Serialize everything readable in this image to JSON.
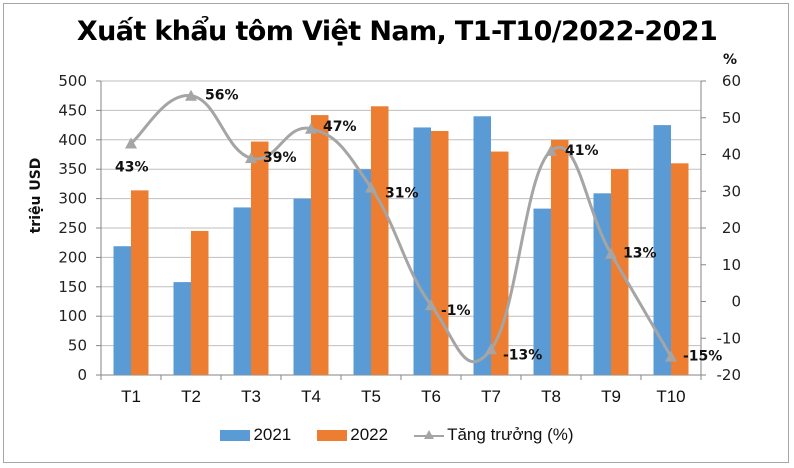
{
  "title": "Xuất khẩu tôm Việt Nam, T1-T10/2022-2021",
  "axes": {
    "left_label": "triệu USD",
    "right_label": "%",
    "left_ticks": [
      "500",
      "450",
      "400",
      "350",
      "300",
      "250",
      "200",
      "150",
      "100",
      "50",
      "0"
    ],
    "right_ticks": [
      "60",
      "50",
      "40",
      "30",
      "20",
      "10",
      "0",
      "-10",
      "-20"
    ]
  },
  "legend": {
    "s2021": "2021",
    "s2022": "2022",
    "growth": "Tăng trưởng (%)"
  },
  "colors": {
    "s2021": "#5B9BD5",
    "s2022": "#ED7D31",
    "growth": "#A5A5A5",
    "grid": "#BFBFBF"
  },
  "chart_data": {
    "type": "bar",
    "title": "Xuất khẩu tôm Việt Nam, T1-T10/2022-2021",
    "xlabel": "",
    "ylabel": "triệu USD",
    "y2label": "%",
    "ylim": [
      0,
      500
    ],
    "y2lim": [
      -20,
      60
    ],
    "grid": true,
    "legend_position": "bottom",
    "categories": [
      "T1",
      "T2",
      "T3",
      "T4",
      "T5",
      "T6",
      "T7",
      "T8",
      "T9",
      "T10"
    ],
    "series": [
      {
        "name": "2021",
        "type": "bar",
        "axis": "left",
        "values": [
          219,
          158,
          285,
          300,
          350,
          421,
          440,
          283,
          309,
          425
        ]
      },
      {
        "name": "2022",
        "type": "bar",
        "axis": "left",
        "values": [
          314,
          245,
          397,
          442,
          457,
          415,
          380,
          400,
          350,
          360
        ]
      },
      {
        "name": "Tăng trưởng (%)",
        "type": "line",
        "axis": "right",
        "values": [
          43,
          56,
          39,
          47,
          31,
          -1,
          -13,
          41,
          13,
          -15
        ],
        "labels": [
          "43%",
          "56%",
          "39%",
          "47%",
          "31%",
          "-1%",
          "-13%",
          "41%",
          "13%",
          "-15%"
        ]
      }
    ]
  }
}
